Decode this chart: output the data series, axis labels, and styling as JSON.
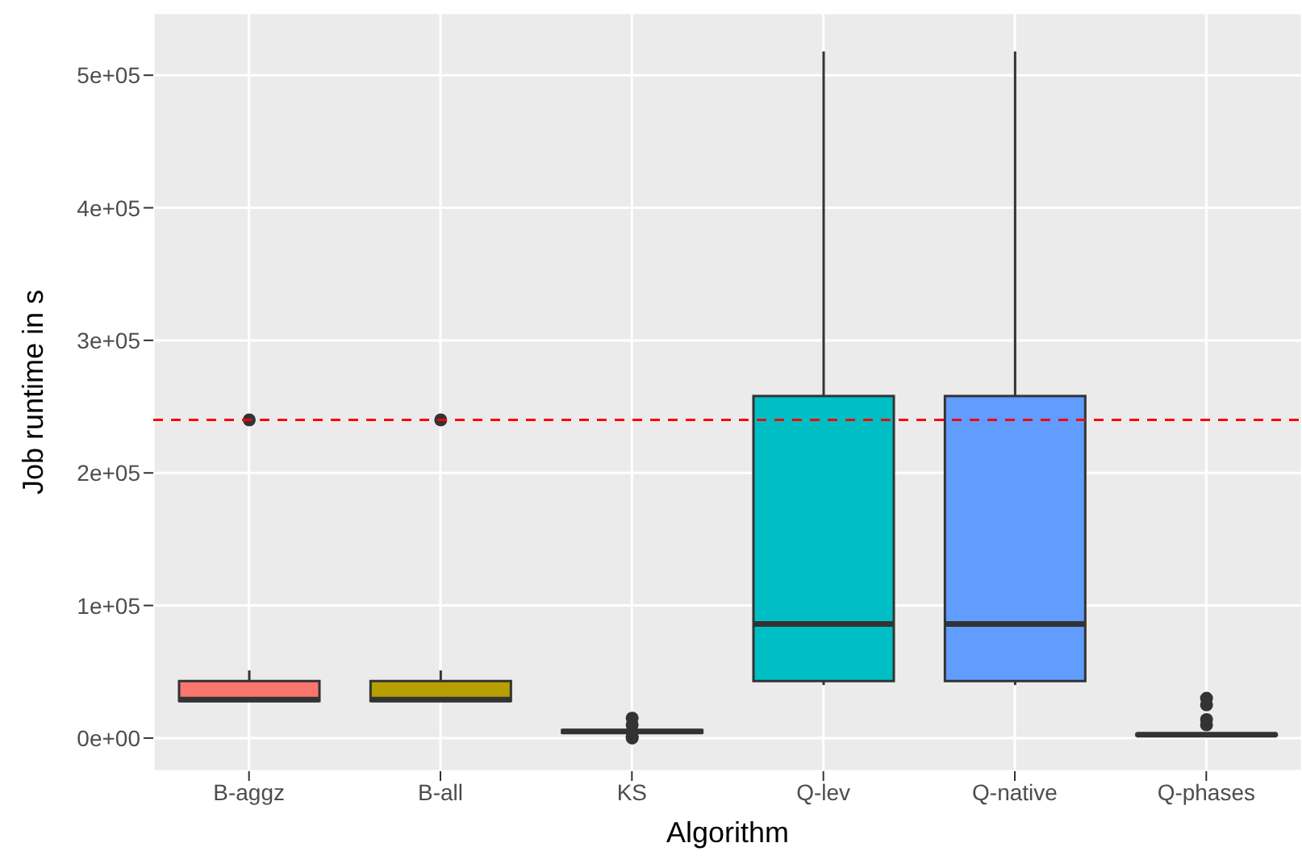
{
  "chart_data": {
    "type": "box",
    "xlabel": "Algorithm",
    "ylabel": "Job runtime in s",
    "categories": [
      "B-aggz",
      "B-all",
      "KS",
      "Q-lev",
      "Q-native",
      "Q-phases"
    ],
    "colors": [
      "#f8766d",
      "#b79f00",
      "#00ba38",
      "#00bfc4",
      "#619cff",
      "#f564e3"
    ],
    "boxes": [
      {
        "low": 28000,
        "q1": 28000,
        "median": 29000,
        "q3": 43000,
        "high": 51000,
        "outliers": [
          240000
        ]
      },
      {
        "low": 28000,
        "q1": 28000,
        "median": 29000,
        "q3": 43000,
        "high": 51000,
        "outliers": [
          240000
        ]
      },
      {
        "low": 2000,
        "q1": 4000,
        "median": 5000,
        "q3": 6000,
        "high": 8000,
        "outliers": [
          0,
          1000,
          10000,
          15000
        ]
      },
      {
        "low": 40000,
        "q1": 43000,
        "median": 86000,
        "q3": 258000,
        "high": 518000
      },
      {
        "low": 40000,
        "q1": 43000,
        "median": 86000,
        "q3": 258000,
        "high": 518000
      },
      {
        "low": 1000,
        "q1": 2000,
        "median": 2500,
        "q3": 3000,
        "high": 4000,
        "outliers": [
          10000,
          14000,
          25000,
          30000
        ]
      }
    ],
    "ylim": [
      -25000,
      547000
    ],
    "yticks": [
      {
        "value": 0,
        "label": "0e+00"
      },
      {
        "value": 100000,
        "label": "1e+05"
      },
      {
        "value": 200000,
        "label": "2e+05"
      },
      {
        "value": 300000,
        "label": "3e+05"
      },
      {
        "value": 400000,
        "label": "4e+05"
      },
      {
        "value": 500000,
        "label": "5e+05"
      }
    ],
    "ref_lines": [
      {
        "axis": "y",
        "value": 240000,
        "color": "#ff0000",
        "line_style": "dashed"
      }
    ],
    "grid": true
  }
}
